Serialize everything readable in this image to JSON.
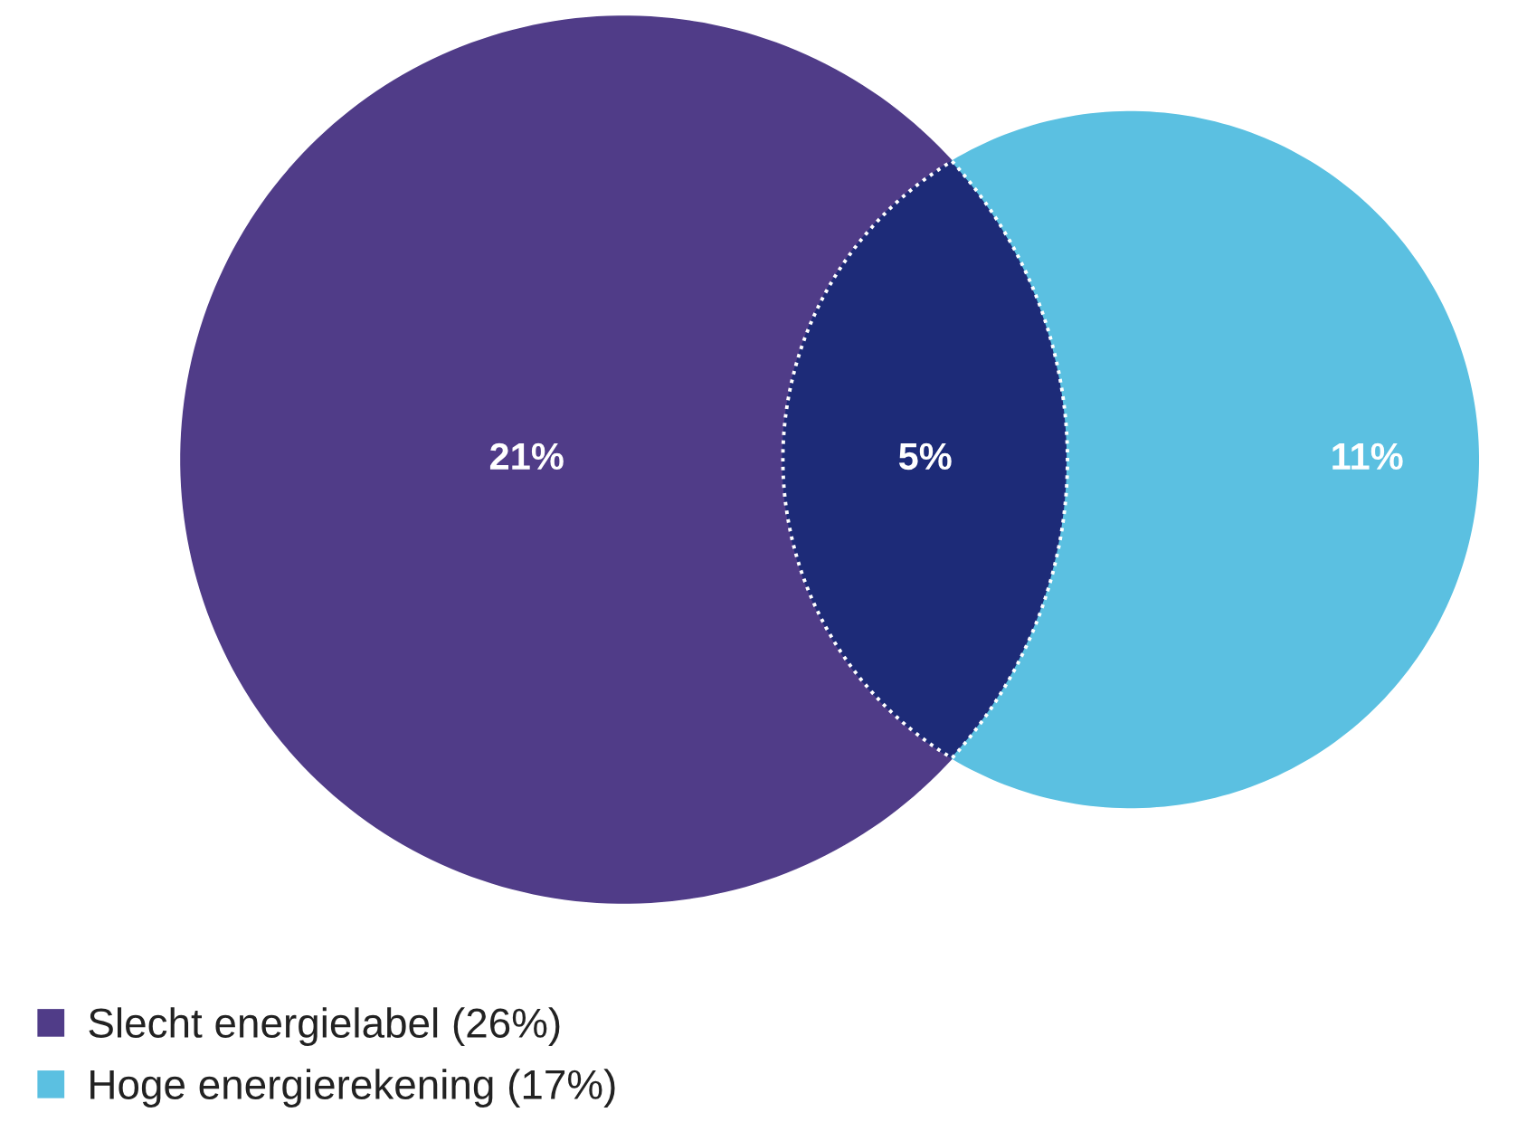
{
  "chart_data": {
    "type": "other",
    "categories": [
      "Slecht energielabel (26%)",
      null,
      "Hoge energierekening (17%)"
    ],
    "values": [
      21,
      5,
      11
    ],
    "value_labels": [
      "21%",
      "5%",
      "11%"
    ],
    "colors": [
      "#503c88",
      "#1d2b78",
      "#5bc0e1"
    ]
  }
}
